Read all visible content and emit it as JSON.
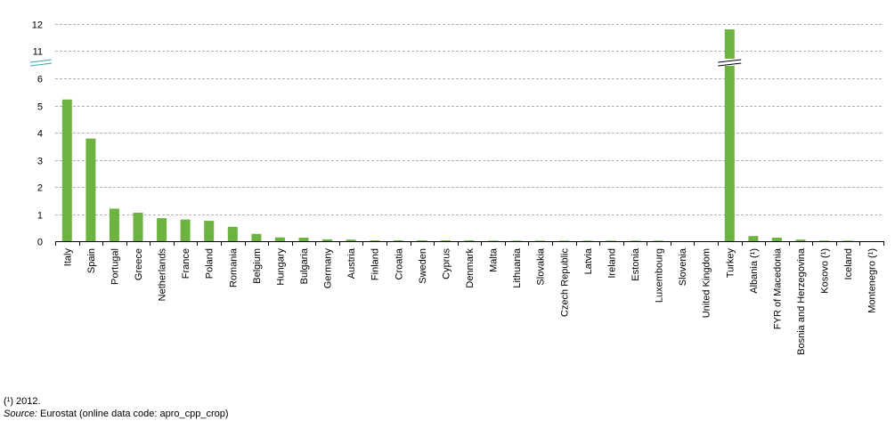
{
  "chart_data": {
    "type": "bar",
    "categories": [
      "Italy",
      "Spain",
      "Portugal",
      "Greece",
      "Netherlands",
      "France",
      "Poland",
      "Romania",
      "Belgium",
      "Hungary",
      "Bulgaria",
      "Germany",
      "Austria",
      "Finland",
      "Croatia",
      "Sweden",
      "Cyprus",
      "Denmark",
      "Malta",
      "Lithuania",
      "Slovakia",
      "Czech Republic",
      "Latvia",
      "Ireland",
      "Estonia",
      "Luxembourg",
      "Slovenia",
      "United Kingdom",
      "Turkey",
      "Albania (¹)",
      "FYR of Macedonia",
      "Bosnia and Herzegovina",
      "Kosovo (¹)",
      "Iceland",
      "Montenegro (¹)"
    ],
    "values": [
      5.22,
      3.78,
      1.2,
      1.05,
      0.85,
      0.8,
      0.75,
      0.53,
      0.27,
      0.14,
      0.13,
      0.07,
      0.06,
      0.03,
      0.03,
      0.03,
      0.03,
      0.03,
      0.02,
      0.02,
      0.02,
      0.02,
      0.02,
      0.02,
      0.02,
      0.02,
      0.0,
      0.0,
      11.8,
      0.19,
      0.13,
      0.06,
      0.02,
      0.02,
      0.0
    ],
    "y_ticks_lower": [
      "0",
      "1",
      "2",
      "3",
      "4",
      "5",
      "6"
    ],
    "y_ticks_upper": [
      "11",
      "12"
    ],
    "ylim_lower": [
      0,
      6
    ],
    "ylim_upper": [
      11,
      12
    ],
    "axis_break": true,
    "grid": true,
    "bar_color": "#6DB33F"
  },
  "footer": {
    "note": "(¹) 2012.",
    "source_label": "Source:",
    "source_text": " Eurostat (online data code: apro_cpp_crop)"
  }
}
